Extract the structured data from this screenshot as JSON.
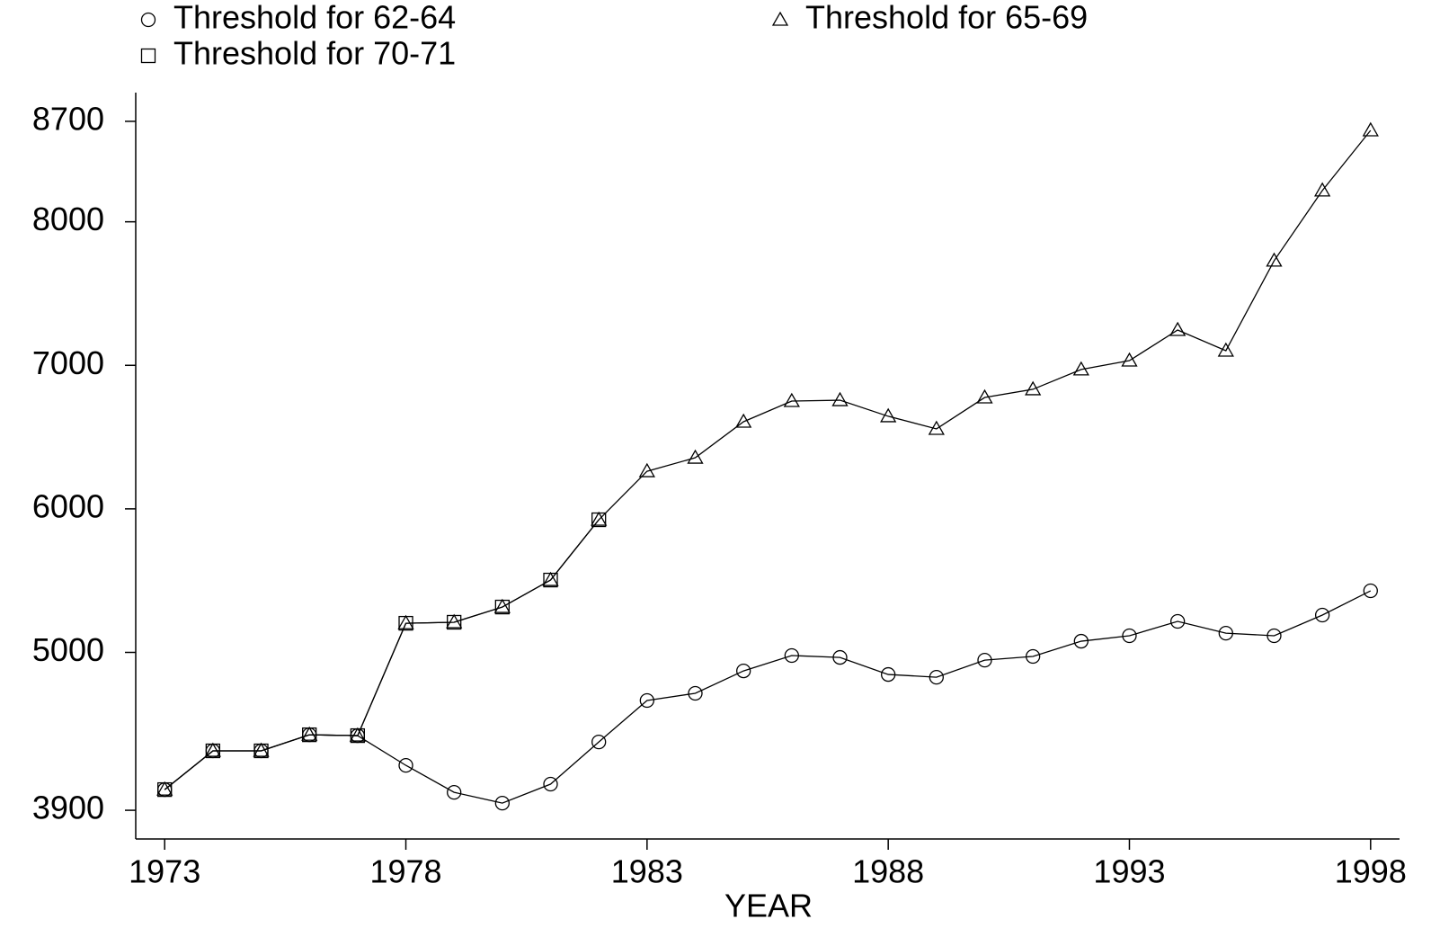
{
  "chart_data": {
    "type": "line",
    "xlabel": "YEAR",
    "x": [
      1973,
      1974,
      1975,
      1976,
      1977,
      1978,
      1979,
      1980,
      1981,
      1982,
      1983,
      1984,
      1985,
      1986,
      1987,
      1988,
      1989,
      1990,
      1991,
      1992,
      1993,
      1994,
      1995,
      1996,
      1997,
      1998
    ],
    "series": [
      {
        "name": "Threshold for 62-64",
        "color": "#000000",
        "marker": "circle",
        "values": [
          4044,
          4314,
          4314,
          4426,
          4420,
          4213,
          4025,
          3950,
          4082,
          4376,
          4665,
          4715,
          4871,
          4978,
          4965,
          4846,
          4827,
          4946,
          4972,
          5078,
          5116,
          5216,
          5134,
          5116,
          5260,
          5429
        ]
      },
      {
        "name": "Threshold for 65-69",
        "color": "#000000",
        "marker": "triangle",
        "values": [
          4044,
          4314,
          4314,
          4426,
          4420,
          5203,
          5210,
          5316,
          5504,
          5924,
          6262,
          6356,
          6607,
          6751,
          6757,
          6645,
          6557,
          6776,
          6833,
          6971,
          7033,
          7246,
          7102,
          7729,
          8218,
          8637
        ]
      },
      {
        "name": "Threshold for 70-71",
        "color": "#000000",
        "marker": "square",
        "values": [
          4044,
          4314,
          4314,
          4426,
          4420,
          5203,
          5210,
          5316,
          5504,
          5924,
          null,
          null,
          null,
          null,
          null,
          null,
          null,
          null,
          null,
          null,
          null,
          null,
          null,
          null,
          null,
          null
        ]
      }
    ],
    "xlim": [
      1972.4,
      1998.6
    ],
    "xticks": [
      1973,
      1978,
      1983,
      1988,
      1993,
      1998
    ],
    "ylim": [
      3700,
      8900
    ],
    "yticks": [
      3900,
      5000,
      6000,
      7000,
      8000,
      8700
    ],
    "grid": false
  }
}
